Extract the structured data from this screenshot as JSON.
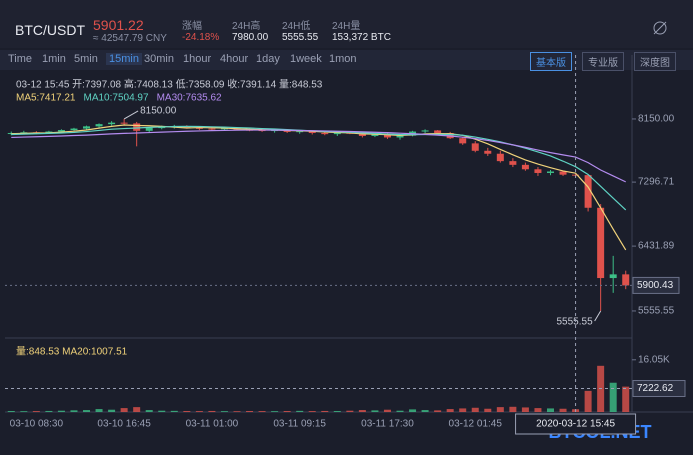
{
  "header": {
    "symbol": "BTC/USDT",
    "price": "5901.22",
    "cny": "≈ 42547.79 CNY",
    "stats": [
      {
        "label": "涨幅",
        "value": "-24.18%"
      },
      {
        "label": "24H高",
        "value": "7980.00"
      },
      {
        "label": "24H低",
        "value": "5555.55"
      },
      {
        "label": "24H量",
        "value": "153,372 BTC"
      }
    ],
    "intervals": [
      "Time",
      "1min",
      "5min",
      "15min",
      "30min",
      "1hour",
      "4hour",
      "1day",
      "1week",
      "1mon"
    ],
    "active_interval": 3,
    "views": [
      "基本版",
      "专业版",
      "深度图"
    ],
    "active_view": 0
  },
  "chart_data": {
    "type": "candlestick",
    "ohlc_info": "03-12 15:45  开:7397.08  高:7408.13  低:7358.09  收:7391.14  量:848.53",
    "categories": [
      null,
      null,
      "03-10 08:30",
      null,
      null,
      null,
      null,
      null,
      null,
      "03-10 16:45",
      null,
      null,
      null,
      null,
      null,
      null,
      "03-11 01:00",
      null,
      null,
      null,
      null,
      null,
      null,
      "03-11 09:15",
      null,
      null,
      null,
      null,
      null,
      null,
      "03-11 17:30",
      null,
      null,
      null,
      null,
      null,
      null,
      "03-12 01:45",
      null,
      null,
      null,
      null,
      null,
      null,
      null,
      null,
      null,
      null,
      null,
      null
    ],
    "open": [
      7950,
      7960,
      7970,
      7955,
      7980,
      8000,
      8020,
      8050,
      8080,
      8100,
      8090,
      7990,
      8030,
      8040,
      8050,
      8030,
      8020,
      8010,
      8025,
      8005,
      8000,
      7990,
      8000,
      7975,
      7985,
      7960,
      7945,
      7965,
      7950,
      7920,
      7945,
      7900,
      7925,
      7980,
      7995,
      7960,
      7890,
      7820,
      7720,
      7680,
      7580,
      7530,
      7470,
      7420,
      7440,
      7397.08,
      7391,
      6950,
      6000,
      6050
    ],
    "high": [
      7980,
      7990,
      7985,
      7990,
      8010,
      8030,
      8060,
      8090,
      8120,
      8150,
      8110,
      8040,
      8060,
      8070,
      8065,
      8050,
      8045,
      8035,
      8040,
      8030,
      8020,
      8015,
      8010,
      8000,
      7995,
      7980,
      7975,
      7985,
      7970,
      7960,
      7965,
      7940,
      7990,
      8010,
      8000,
      7975,
      7910,
      7850,
      7760,
      7720,
      7620,
      7560,
      7500,
      7460,
      7450,
      7408.13,
      7400,
      7000,
      6300,
      6100
    ],
    "low": [
      7930,
      7940,
      7945,
      7950,
      7960,
      7985,
      8000,
      8030,
      8060,
      8070,
      7780,
      7970,
      8010,
      8020,
      8020,
      8000,
      7995,
      7990,
      8000,
      7985,
      7975,
      7965,
      7960,
      7950,
      7940,
      7930,
      7920,
      7945,
      7900,
      7905,
      7880,
      7870,
      7915,
      7960,
      7950,
      7880,
      7800,
      7700,
      7650,
      7560,
      7500,
      7450,
      7380,
      7390,
      7380,
      7358.09,
      6900,
      5555.55,
      5800,
      5850
    ],
    "close": [
      7960,
      7970,
      7955,
      7980,
      8000,
      8020,
      8050,
      8080,
      8100,
      8090,
      7990,
      8030,
      8040,
      8050,
      8030,
      8020,
      8010,
      8025,
      8005,
      8000,
      7990,
      8000,
      7975,
      7985,
      7960,
      7945,
      7965,
      7950,
      7920,
      7945,
      7900,
      7925,
      7980,
      7995,
      7960,
      7890,
      7820,
      7720,
      7680,
      7580,
      7530,
      7470,
      7420,
      7440,
      7397,
      7391.14,
      6950,
      6000,
      6050,
      5900.43
    ],
    "up_color": "#3dbf87",
    "down_color": "#e0524c",
    "ma_series": [
      {
        "name": "MA5:7417.21",
        "color": "#f0d27a",
        "values": [
          7950,
          7955,
          7960,
          7962,
          7973,
          7985,
          8001,
          8026,
          8050,
          8068,
          8062,
          8058,
          8050,
          8040,
          8028,
          8034,
          8030,
          8027,
          8018,
          8012,
          8006,
          8004,
          7994,
          7990,
          7984,
          7973,
          7966,
          7961,
          7948,
          7945,
          7936,
          7928,
          7934,
          7949,
          7952,
          7950,
          7929,
          7877,
          7814,
          7738,
          7666,
          7596,
          7540,
          7492,
          7448,
          7417.21,
          7230,
          6950,
          6660,
          6380
        ]
      },
      {
        "name": "MA10:7504.97",
        "color": "#5fd3c4",
        "values": [
          7940,
          7945,
          7950,
          7955,
          7960,
          7968,
          7980,
          7995,
          8012,
          8020,
          8028,
          8036,
          8042,
          8048,
          8050,
          8048,
          8044,
          8040,
          8034,
          8028,
          8020,
          8014,
          8006,
          7998,
          7990,
          7982,
          7976,
          7970,
          7962,
          7955,
          7946,
          7940,
          7938,
          7940,
          7942,
          7940,
          7930,
          7905,
          7875,
          7840,
          7800,
          7755,
          7705,
          7650,
          7580,
          7504.97,
          7400,
          7240,
          7080,
          6920
        ]
      },
      {
        "name": "MA30:7635.62",
        "color": "#b48cf0",
        "values": [
          7900,
          7905,
          7910,
          7915,
          7920,
          7926,
          7932,
          7940,
          7948,
          7955,
          7960,
          7966,
          7972,
          7978,
          7984,
          7988,
          7992,
          7995,
          7998,
          8000,
          8000,
          7999,
          7997,
          7994,
          7991,
          7988,
          7984,
          7980,
          7975,
          7970,
          7965,
          7958,
          7950,
          7942,
          7932,
          7920,
          7904,
          7884,
          7860,
          7832,
          7800,
          7766,
          7730,
          7695,
          7665,
          7635.62,
          7560,
          7460,
          7380,
          7300
        ]
      }
    ],
    "ylim": [
      5190,
      8744
    ],
    "yticks": [
      {
        "value": 8150,
        "label": "8150.00"
      },
      7296.71,
      6431.89,
      5555.55
    ],
    "last_price": 5900.43,
    "high_marker": {
      "index": 9,
      "value": 8150,
      "label": "8150.00"
    },
    "low_marker": {
      "index": 47,
      "value": 5555.55
    },
    "crosshair": {
      "index": 45,
      "time": "2020-03-12 15:45",
      "volume": 7222.62
    },
    "volume": {
      "info": "量:848.53  MA20:1007.51",
      "values": [
        300,
        250,
        280,
        320,
        400,
        520,
        600,
        900,
        700,
        1200,
        1500,
        600,
        400,
        350,
        300,
        280,
        320,
        260,
        240,
        300,
        280,
        260,
        300,
        350,
        280,
        320,
        300,
        400,
        600,
        500,
        700,
        400,
        800,
        600,
        500,
        900,
        1100,
        1300,
        1000,
        1500,
        1600,
        1400,
        1200,
        1100,
        1000,
        848.53,
        6500,
        14200,
        9000,
        7800
      ],
      "ylim": [
        0,
        20600
      ],
      "yticks": [
        {
          "value": 16050,
          "label": "16.05K"
        }
      ]
    },
    "watermark": "BTCOL.NET"
  }
}
